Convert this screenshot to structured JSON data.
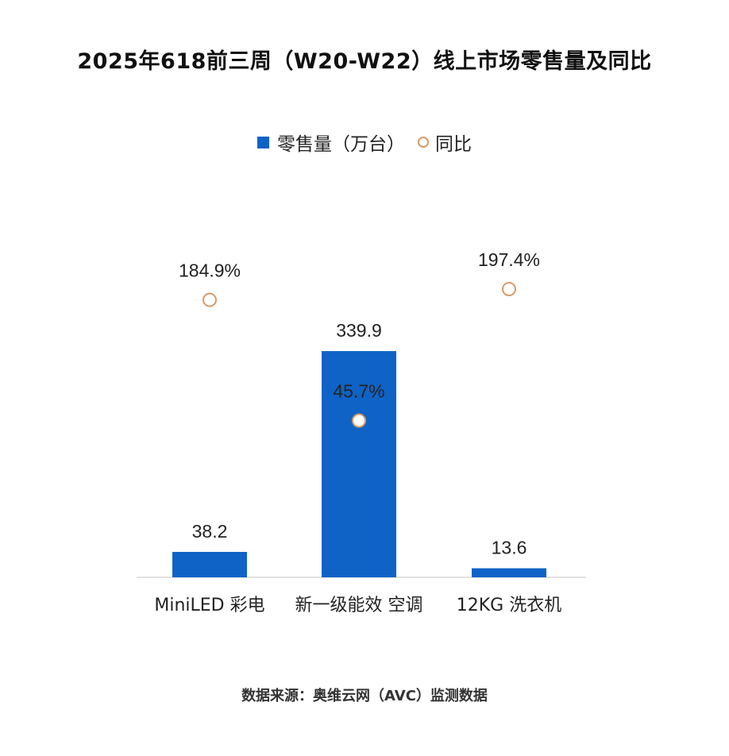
{
  "chart_data": {
    "type": "bar",
    "title": "2025年618前三周（W20-W22）线上市场零售量及同比",
    "categories": [
      "MiniLED 彩电",
      "新一级能效 空调",
      "12KG 洗衣机"
    ],
    "series": [
      {
        "name": "零售量（万台）",
        "type": "bar",
        "values": [
          38.2,
          339.9,
          13.6
        ],
        "labels": [
          "38.2",
          "339.9",
          "13.6"
        ]
      },
      {
        "name": "同比",
        "type": "scatter",
        "values": [
          184.9,
          45.7,
          197.4
        ],
        "labels": [
          "184.9%",
          "45.7%",
          "197.4%"
        ]
      }
    ],
    "legend": {
      "position": "top-center",
      "bar_label": "零售量（万台）",
      "marker_label": "同比"
    },
    "ylim_bar": [
      0,
      340
    ],
    "ylim_yoy": [
      -135,
      300
    ],
    "grid": false,
    "source": "数据来源：奥维云网（AVC）监测数据"
  },
  "colors": {
    "bar": "#0f63c6",
    "marker": "#d99a66",
    "axis": "#d9d9d9",
    "text": "#222222"
  }
}
